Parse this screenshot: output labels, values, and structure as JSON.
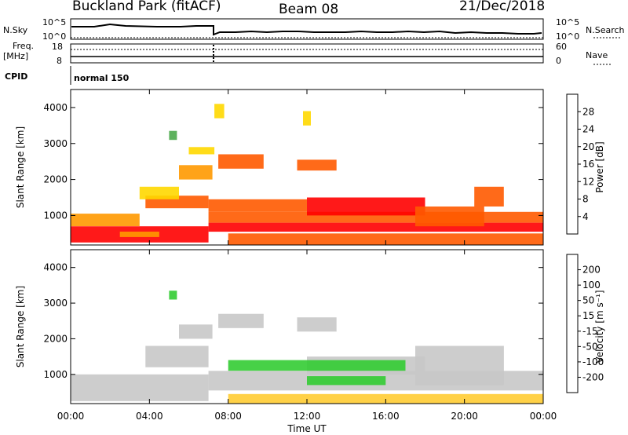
{
  "header": {
    "station": "Buckland Park (fitACF)",
    "beam": "Beam 08",
    "date": "21/Dec/2018"
  },
  "top_panels": {
    "nsky_label": "N.Sky",
    "nsky_ticks": [
      "10^5",
      "10^0"
    ],
    "nsearch_label": "N.Search",
    "nsearch_ticks": [
      "10^5",
      "10^0"
    ],
    "freq_label_1": "Freq.",
    "freq_label_2": "[MHz]",
    "freq_ticks": [
      "18",
      "8"
    ],
    "nave_label": "Nave",
    "nave_ticks": [
      "60",
      "0"
    ],
    "cpid_label": "CPID",
    "cpid_text": "normal 150"
  },
  "x_axis": {
    "label": "Time UT",
    "ticks": [
      "00:00",
      "04:00",
      "08:00",
      "12:00",
      "16:00",
      "20:00",
      "00:00"
    ]
  },
  "colors": {
    "power": [
      "#0000ff",
      "#2a4fb0",
      "#3b8f6a",
      "#4caa4c",
      "#b5d21e",
      "#ffd800",
      "#ff9900",
      "#ff5a00",
      "#ff0000"
    ],
    "velocity": [
      "#ff0000",
      "#ff5500",
      "#ff9900",
      "#ffcc33",
      "#c8c8c8",
      "#33cc33",
      "#2e8b57",
      "#1e3ca0",
      "#0000cc"
    ]
  },
  "chart_data": [
    {
      "type": "heatmap",
      "title": "",
      "xlabel": "Time UT",
      "ylabel": "Slant Range [km]",
      "xlim": [
        0,
        24
      ],
      "ylim": [
        180,
        4500
      ],
      "yticks": [
        1000,
        2000,
        3000,
        4000
      ],
      "colorbar": {
        "label": "Power [dB]",
        "ticks": [
          "4",
          "8",
          "12",
          "16",
          "20",
          "24",
          "28"
        ],
        "range": [
          0,
          30
        ]
      },
      "regions": [
        {
          "t": [
            0.0,
            7.0
          ],
          "r": [
            250,
            700
          ],
          "level": 28
        },
        {
          "t": [
            0.0,
            3.5
          ],
          "r": [
            700,
            1050
          ],
          "level": 22
        },
        {
          "t": [
            2.5,
            4.5
          ],
          "r": [
            400,
            550
          ],
          "level": 20
        },
        {
          "t": [
            3.8,
            7.0
          ],
          "r": [
            1200,
            1550
          ],
          "level": 24
        },
        {
          "t": [
            3.5,
            5.5
          ],
          "r": [
            1450,
            1800
          ],
          "level": 18
        },
        {
          "t": [
            5.5,
            7.2
          ],
          "r": [
            2000,
            2400
          ],
          "level": 20
        },
        {
          "t": [
            6.0,
            7.3
          ],
          "r": [
            2700,
            2900
          ],
          "level": 18
        },
        {
          "t": [
            5.0,
            5.4
          ],
          "r": [
            3100,
            3350
          ],
          "level": 12
        },
        {
          "t": [
            7.0,
            24.0
          ],
          "r": [
            550,
            800
          ],
          "level": 28
        },
        {
          "t": [
            7.0,
            24.0
          ],
          "r": [
            800,
            1100
          ],
          "level": 26
        },
        {
          "t": [
            7.0,
            12.0
          ],
          "r": [
            1100,
            1450
          ],
          "level": 24
        },
        {
          "t": [
            7.5,
            9.8
          ],
          "r": [
            2300,
            2700
          ],
          "level": 24
        },
        {
          "t": [
            11.5,
            13.5
          ],
          "r": [
            2250,
            2550
          ],
          "level": 26
        },
        {
          "t": [
            12.0,
            18.0
          ],
          "r": [
            1000,
            1500
          ],
          "level": 28
        },
        {
          "t": [
            17.5,
            21.0
          ],
          "r": [
            700,
            1250
          ],
          "level": 26
        },
        {
          "t": [
            20.5,
            22.0
          ],
          "r": [
            1250,
            1800
          ],
          "level": 24
        },
        {
          "t": [
            8.0,
            24.0
          ],
          "r": [
            180,
            500
          ],
          "level": 24
        },
        {
          "t": [
            11.8,
            12.2
          ],
          "r": [
            3500,
            3900
          ],
          "level": 18
        },
        {
          "t": [
            7.3,
            7.8
          ],
          "r": [
            3700,
            4100
          ],
          "level": 18
        }
      ]
    },
    {
      "type": "heatmap",
      "title": "",
      "xlabel": "Time UT",
      "ylabel": "Slant Range [km]",
      "xlim": [
        0,
        24
      ],
      "ylim": [
        180,
        4500
      ],
      "yticks": [
        1000,
        2000,
        3000,
        4000
      ],
      "colorbar": {
        "label": "Velocity [m s⁻¹]",
        "ticks": [
          "-200",
          "-100",
          "-50",
          "-15",
          "15",
          "50",
          "100",
          "200"
        ],
        "range": [
          -250,
          250
        ]
      },
      "regions": [
        {
          "t": [
            0.0,
            7.0
          ],
          "r": [
            250,
            1000
          ],
          "level": 0
        },
        {
          "t": [
            3.8,
            7.0
          ],
          "r": [
            1200,
            1800
          ],
          "level": 0
        },
        {
          "t": [
            5.5,
            7.2
          ],
          "r": [
            2000,
            2400
          ],
          "level": 0
        },
        {
          "t": [
            7.0,
            24.0
          ],
          "r": [
            550,
            1100
          ],
          "level": 0
        },
        {
          "t": [
            7.5,
            9.8
          ],
          "r": [
            2300,
            2700
          ],
          "level": 0
        },
        {
          "t": [
            11.5,
            13.5
          ],
          "r": [
            2200,
            2600
          ],
          "level": 0
        },
        {
          "t": [
            12.0,
            18.0
          ],
          "r": [
            1000,
            1500
          ],
          "level": 0
        },
        {
          "t": [
            8.0,
            17.0
          ],
          "r": [
            1100,
            1400
          ],
          "level": 30
        },
        {
          "t": [
            12.0,
            16.0
          ],
          "r": [
            700,
            950
          ],
          "level": 40
        },
        {
          "t": [
            5.0,
            5.4
          ],
          "r": [
            3100,
            3350
          ],
          "level": 80
        },
        {
          "t": [
            8.0,
            24.0
          ],
          "r": [
            180,
            450
          ],
          "level": -30
        },
        {
          "t": [
            17.5,
            22.0
          ],
          "r": [
            700,
            1800
          ],
          "level": 0
        }
      ]
    }
  ]
}
